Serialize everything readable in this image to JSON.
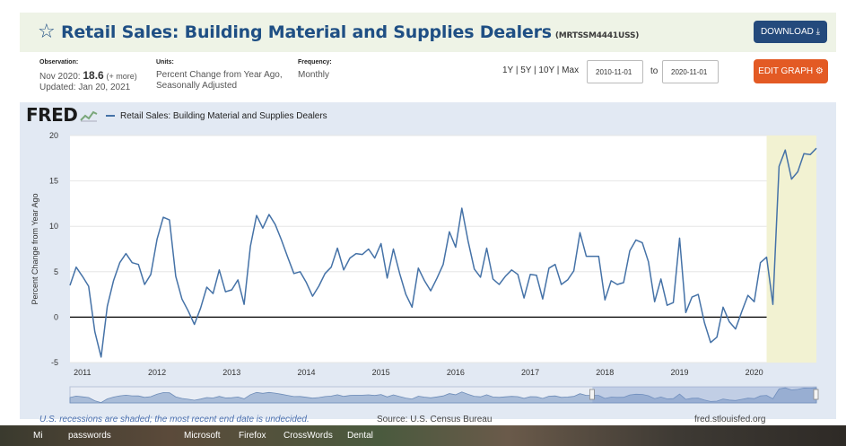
{
  "header": {
    "title": "Retail Sales: Building Material and Supplies Dealers",
    "series_code": "(MRTSSM4441USS)",
    "download_label": "DOWNLOAD",
    "download_icon": "download-icon"
  },
  "meta": {
    "observation_label": "Observation:",
    "observation_date": "Nov 2020:",
    "observation_value": "18.6",
    "observation_more": "(+ more)",
    "updated": "Updated: Jan 20, 2021",
    "units_label": "Units:",
    "units_line1": "Percent Change from Year Ago,",
    "units_line2": "Seasonally Adjusted",
    "frequency_label": "Frequency:",
    "frequency_value": "Monthly"
  },
  "controls": {
    "ranges": "1Y | 5Y | 10Y | Max",
    "start_date": "2010-11-01",
    "to_label": "to",
    "end_date": "2020-11-01",
    "edit_label": "EDIT GRAPH",
    "edit_icon": "gear-icon"
  },
  "chart": {
    "logo": "FRED",
    "legend_label": "Retail Sales: Building Material and Supplies Dealers",
    "recession_note": "U.S. recessions are shaded; the most recent end date is undecided.",
    "source": "Source: U.S. Census Bureau",
    "url": "fred.stlouisfed.org",
    "colors": {
      "line": "#4572a7",
      "recession": "#f2f2d2",
      "background": "#ffffff"
    }
  },
  "taskbar": {
    "items": [
      "Mi",
      "passwords",
      "Microsoft",
      "Firefox",
      "CrossWords",
      "Dental"
    ]
  },
  "chart_data": {
    "type": "line",
    "title": "",
    "xlabel": "",
    "ylabel": "Percent Change from Year Ago",
    "ylim": [
      -5,
      20
    ],
    "yticks": [
      -5,
      0,
      5,
      10,
      15,
      20
    ],
    "xticks": [
      "2011",
      "2012",
      "2013",
      "2014",
      "2015",
      "2016",
      "2017",
      "2018",
      "2019",
      "2020"
    ],
    "x_start": "2010-11",
    "x_end": "2020-11",
    "recession": {
      "start": "2020-03",
      "end": "2020-11"
    },
    "grid": "horizontal",
    "legend": "top-left",
    "series": [
      {
        "name": "Retail Sales: Building Material and Supplies Dealers",
        "values": [
          3.5,
          5.5,
          4.5,
          3.4,
          -1.6,
          -4.4,
          1.2,
          4.0,
          6.0,
          7.0,
          6.0,
          5.8,
          3.6,
          4.7,
          8.6,
          11.0,
          10.7,
          4.5,
          2.0,
          0.7,
          -0.8,
          1.0,
          3.3,
          2.6,
          5.2,
          2.8,
          3.0,
          4.1,
          1.4,
          7.8,
          11.2,
          9.8,
          11.3,
          10.2,
          8.5,
          6.6,
          4.8,
          5.0,
          3.8,
          2.3,
          3.4,
          4.8,
          5.5,
          7.6,
          5.2,
          6.5,
          7.0,
          6.9,
          7.5,
          6.5,
          8.1,
          4.3,
          7.5,
          4.8,
          2.5,
          1.1,
          5.4,
          4.0,
          2.9,
          4.3,
          5.8,
          9.4,
          7.7,
          12.0,
          8.4,
          5.3,
          4.4,
          7.6,
          4.2,
          3.6,
          4.5,
          5.2,
          4.7,
          2.1,
          4.7,
          4.6,
          2.0,
          5.4,
          5.8,
          3.6,
          4.1,
          5.1,
          9.3,
          6.7,
          6.7,
          6.7,
          1.9,
          4.0,
          3.6,
          3.8,
          7.3,
          8.5,
          8.2,
          6.1,
          1.7,
          4.2,
          1.3,
          1.6,
          8.7,
          0.5,
          2.2,
          2.5,
          -0.6,
          -2.8,
          -2.2,
          1.1,
          -0.5,
          -1.3,
          0.6,
          2.4,
          1.7,
          6.0,
          6.6,
          1.4,
          16.6,
          18.4,
          15.2,
          16.0,
          18.0,
          17.9,
          18.6
        ]
      }
    ]
  }
}
